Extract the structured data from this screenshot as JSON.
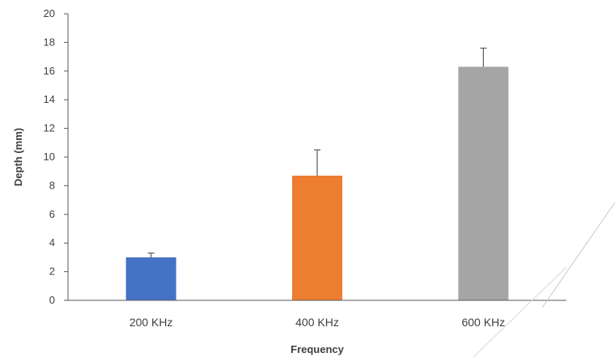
{
  "chart_data": {
    "type": "bar",
    "title": "",
    "xlabel": "Frequency",
    "ylabel": "Depth (mm)",
    "ylim": [
      0,
      20
    ],
    "yticks": [
      0,
      2,
      4,
      6,
      8,
      10,
      12,
      14,
      16,
      18,
      20
    ],
    "grid": false,
    "legend": "none",
    "categories": [
      "200 KHz",
      "400 KHz",
      "600 KHz"
    ],
    "values": [
      3.0,
      8.7,
      16.3
    ],
    "error_upper": [
      0.3,
      1.8,
      1.3
    ],
    "colors": [
      "#4472c4",
      "#ed7d31",
      "#a5a5a5"
    ]
  }
}
